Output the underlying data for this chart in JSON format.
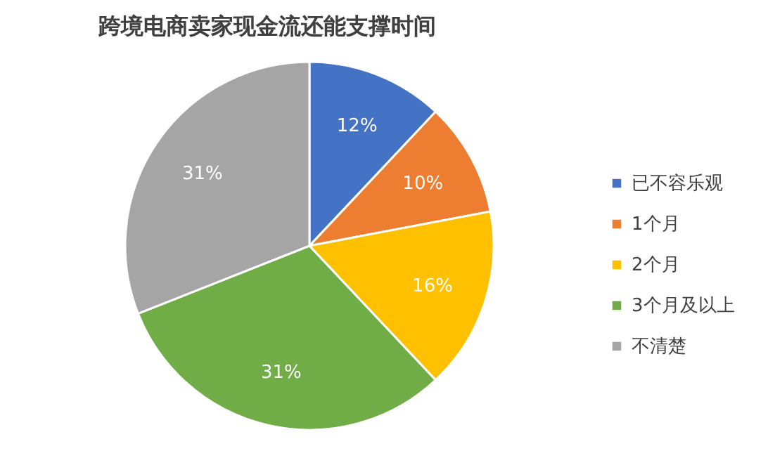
{
  "chart_data": {
    "type": "pie",
    "title": "跨境电商卖家现金流还能支撑时间",
    "categories": [
      "已不容乐观",
      "1个月",
      "2个月",
      "3个月及以上",
      "不清楚"
    ],
    "values": [
      12,
      10,
      16,
      31,
      31
    ],
    "colors": [
      "#4472c4",
      "#ed7d31",
      "#ffc000",
      "#70ad47",
      "#a5a5a5"
    ],
    "value_labels": [
      "12%",
      "10%",
      "16%",
      "31%",
      "31%"
    ],
    "legend": "right"
  }
}
